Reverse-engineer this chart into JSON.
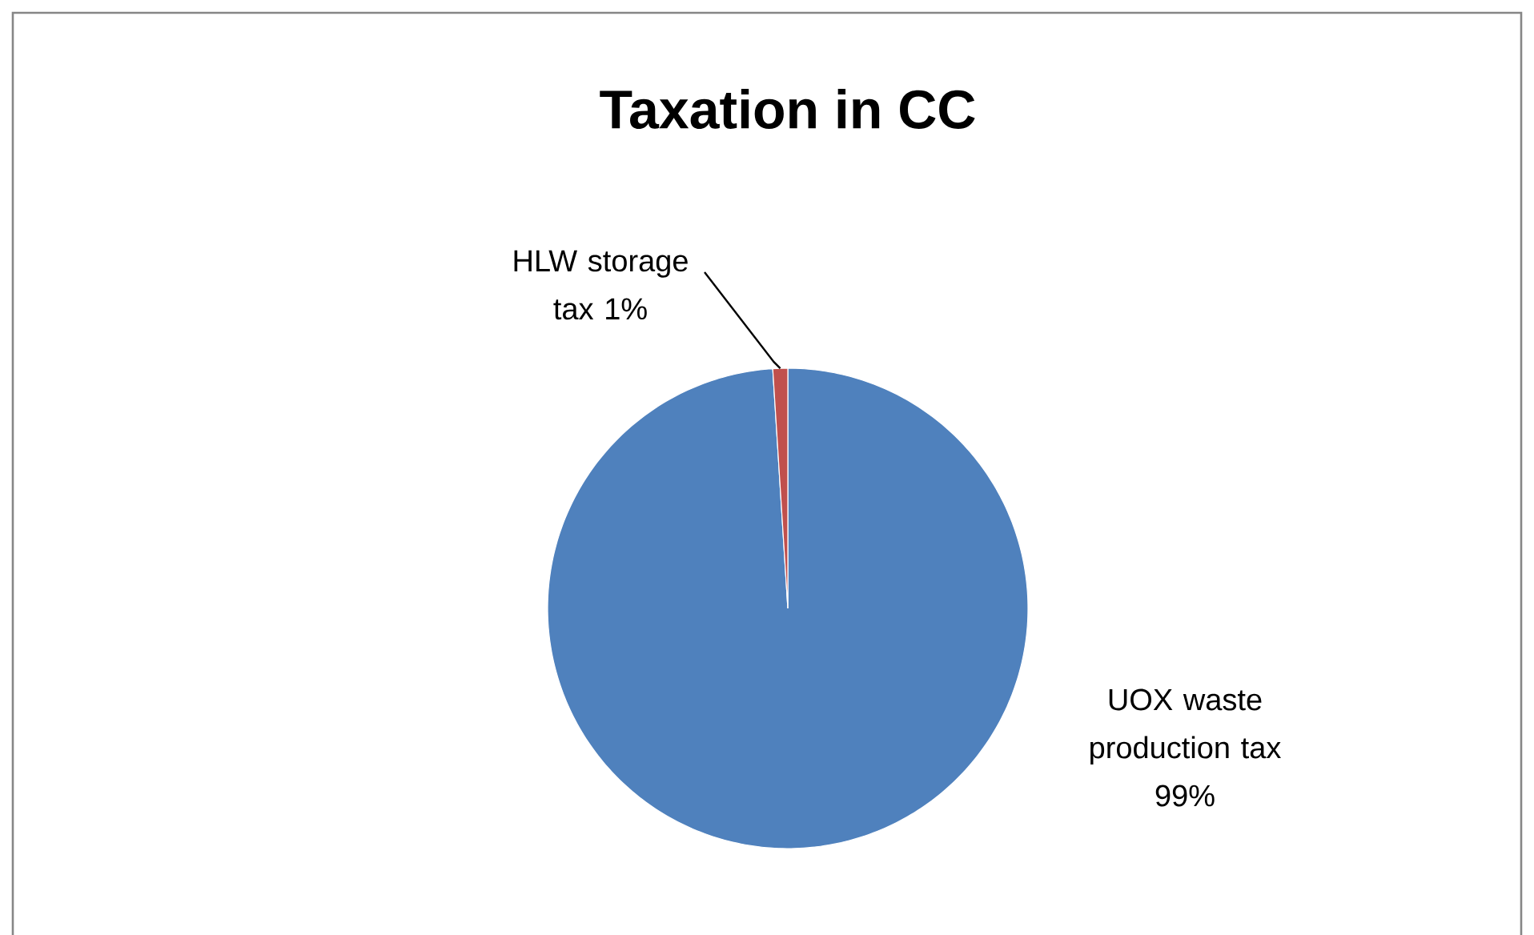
{
  "chart_data": {
    "type": "pie",
    "title": "Taxation in CC",
    "categories": [
      "UOX waste production tax",
      "HLW storage tax"
    ],
    "values": [
      99,
      1
    ],
    "colors": [
      "#4f81bd",
      "#c0504d"
    ],
    "value_labels": [
      "99%",
      "1%"
    ]
  }
}
